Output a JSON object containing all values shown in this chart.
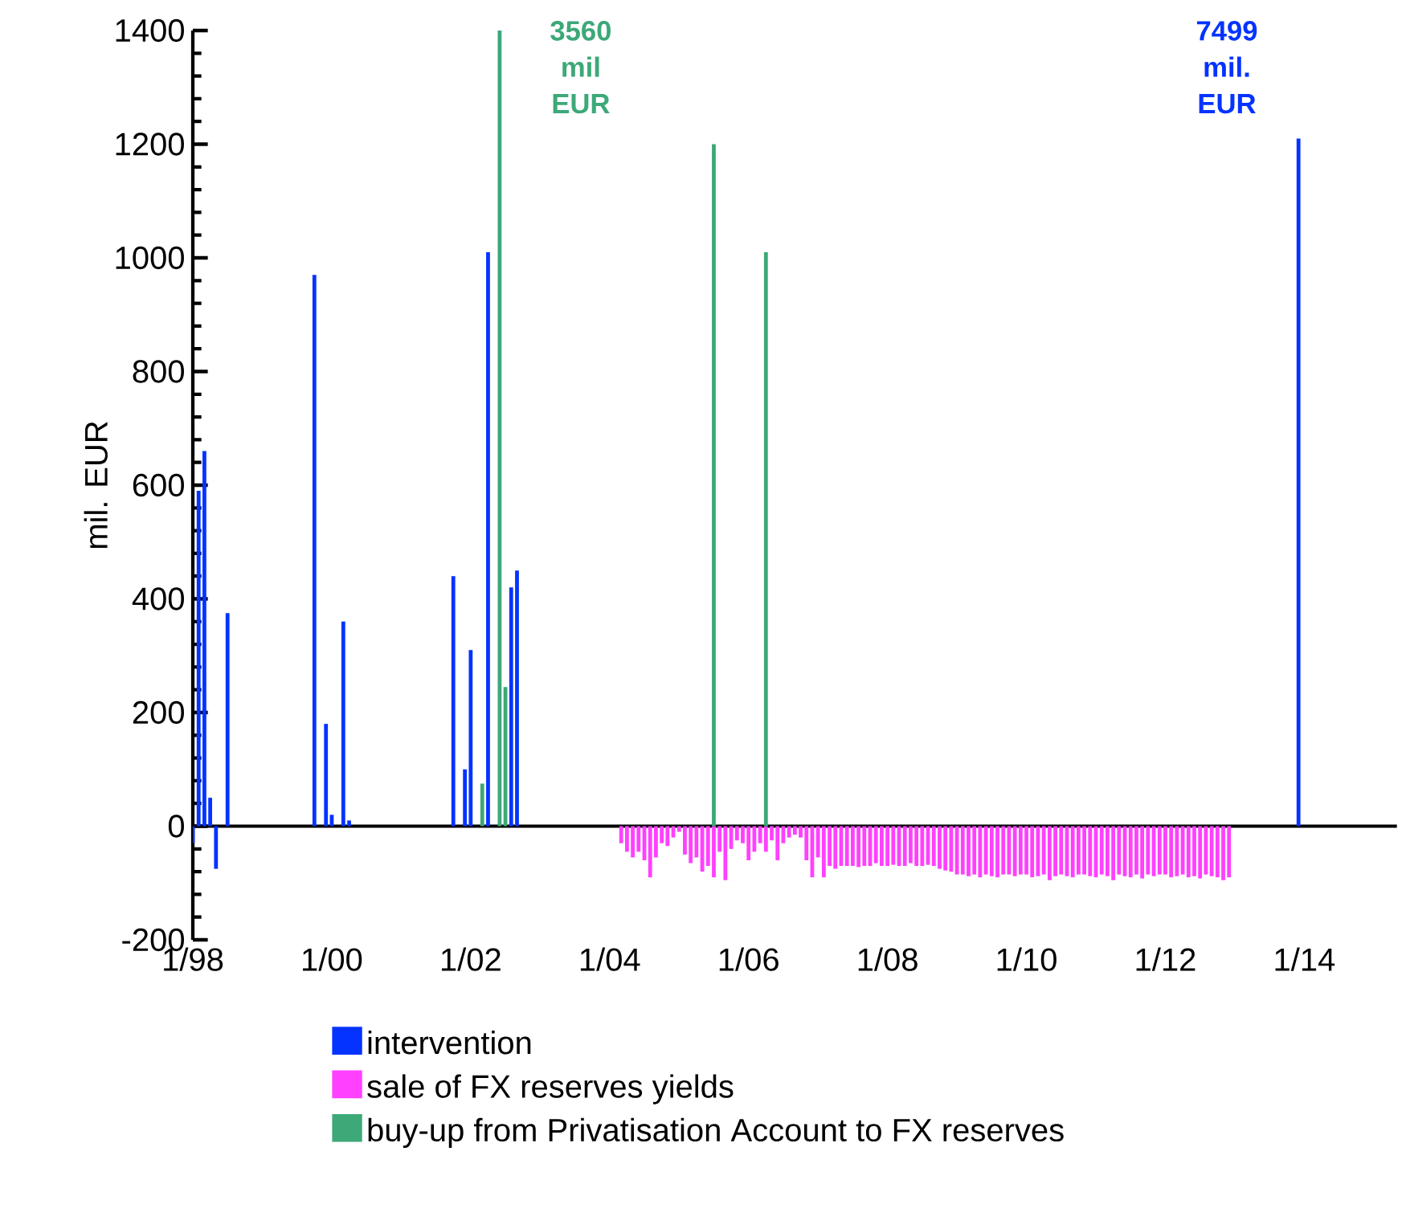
{
  "chart_data": {
    "type": "bar",
    "ylabel": "mil. EUR",
    "xlim": [
      "1998-01",
      "2015-05"
    ],
    "xticks": [
      {
        "value": "1998-01",
        "label": "1/98"
      },
      {
        "value": "2000-01",
        "label": "1/00"
      },
      {
        "value": "2002-01",
        "label": "1/02"
      },
      {
        "value": "2004-01",
        "label": "1/04"
      },
      {
        "value": "2006-01",
        "label": "1/06"
      },
      {
        "value": "2008-01",
        "label": "1/08"
      },
      {
        "value": "2010-01",
        "label": "1/10"
      },
      {
        "value": "2012-01",
        "label": "1/12"
      },
      {
        "value": "2014-01",
        "label": "1/14"
      }
    ],
    "ylim": [
      -200,
      1400
    ],
    "yticks": [
      -200,
      0,
      200,
      400,
      600,
      800,
      1000,
      1200,
      1400
    ],
    "legend": "bottom",
    "grid": false,
    "series": [
      {
        "name": "intervention",
        "color": "#0433ff",
        "x": [
          "1998-01",
          "1998-02",
          "1998-03",
          "1998-04",
          "1998-05",
          "1998-07",
          "1999-10",
          "1999-12",
          "2000-01",
          "2000-03",
          "2000-04",
          "2001-10",
          "2001-12",
          "2002-01",
          "2002-04",
          "2002-08",
          "2002-09",
          "2013-12"
        ],
        "values": [
          -30,
          590,
          660,
          50,
          -75,
          375,
          970,
          180,
          20,
          360,
          10,
          440,
          100,
          310,
          1010,
          420,
          450,
          1210
        ]
      },
      {
        "name": "sale of FX reserves yields",
        "color": "#ff40ff",
        "x": [
          "2004-03",
          "2004-04",
          "2004-05",
          "2004-06",
          "2004-07",
          "2004-08",
          "2004-09",
          "2004-10",
          "2004-11",
          "2004-12",
          "2005-01",
          "2005-02",
          "2005-03",
          "2005-04",
          "2005-05",
          "2005-06",
          "2005-07",
          "2005-08",
          "2005-09",
          "2005-10",
          "2005-11",
          "2005-12",
          "2006-01",
          "2006-02",
          "2006-03",
          "2006-04",
          "2006-05",
          "2006-06",
          "2006-07",
          "2006-08",
          "2006-09",
          "2006-10",
          "2006-11",
          "2006-12",
          "2007-01",
          "2007-02",
          "2007-03",
          "2007-04",
          "2007-05",
          "2007-06",
          "2007-07",
          "2007-08",
          "2007-09",
          "2007-10",
          "2007-11",
          "2007-12",
          "2008-01",
          "2008-02",
          "2008-03",
          "2008-04",
          "2008-05",
          "2008-06",
          "2008-07",
          "2008-08",
          "2008-09",
          "2008-10",
          "2008-11",
          "2008-12",
          "2009-01",
          "2009-02",
          "2009-03",
          "2009-04",
          "2009-05",
          "2009-06",
          "2009-07",
          "2009-08",
          "2009-09",
          "2009-10",
          "2009-11",
          "2009-12",
          "2010-01",
          "2010-02",
          "2010-03",
          "2010-04",
          "2010-05",
          "2010-06",
          "2010-07",
          "2010-08",
          "2010-09",
          "2010-10",
          "2010-11",
          "2010-12",
          "2011-01",
          "2011-02",
          "2011-03",
          "2011-04",
          "2011-05",
          "2011-06",
          "2011-07",
          "2011-08",
          "2011-09",
          "2011-10",
          "2011-11",
          "2011-12",
          "2012-01",
          "2012-02",
          "2012-03",
          "2012-04",
          "2012-05",
          "2012-06",
          "2012-07",
          "2012-08",
          "2012-09",
          "2012-10",
          "2012-11",
          "2012-12"
        ],
        "values": [
          -30,
          -45,
          -55,
          -45,
          -60,
          -90,
          -55,
          -30,
          -35,
          -20,
          -10,
          -50,
          -65,
          -55,
          -80,
          -70,
          -90,
          -45,
          -95,
          -40,
          -25,
          -30,
          -60,
          -45,
          -30,
          -45,
          -25,
          -60,
          -30,
          -20,
          -15,
          -20,
          -60,
          -90,
          -55,
          -90,
          -70,
          -75,
          -70,
          -70,
          -70,
          -72,
          -70,
          -70,
          -65,
          -70,
          -70,
          -68,
          -70,
          -70,
          -65,
          -70,
          -70,
          -68,
          -70,
          -75,
          -78,
          -80,
          -85,
          -85,
          -88,
          -85,
          -90,
          -85,
          -88,
          -90,
          -85,
          -85,
          -88,
          -85,
          -85,
          -90,
          -88,
          -85,
          -95,
          -88,
          -85,
          -88,
          -90,
          -85,
          -85,
          -88,
          -90,
          -85,
          -88,
          -95,
          -85,
          -88,
          -90,
          -85,
          -92,
          -85,
          -88,
          -85,
          -85,
          -90,
          -88,
          -85,
          -90,
          -88,
          -92,
          -85,
          -88,
          -90,
          -95,
          -90
        ]
      },
      {
        "name": "buy-up from Privatisation Account to FX reserves",
        "color": "#3da878",
        "x": [
          "2002-03",
          "2002-06",
          "2002-07",
          "2005-07",
          "2006-04"
        ],
        "values": [
          75,
          1400,
          245,
          1200,
          1010
        ]
      }
    ],
    "ref_lines": [
      {
        "axis": "y",
        "value": 0,
        "color": "#000000"
      }
    ],
    "annotations": [
      {
        "text": "3560 mil EUR",
        "x": "2002-06",
        "y": 1400
      },
      {
        "text": "7499 mil. EUR",
        "x": "2013-12",
        "y": 1210
      }
    ]
  }
}
